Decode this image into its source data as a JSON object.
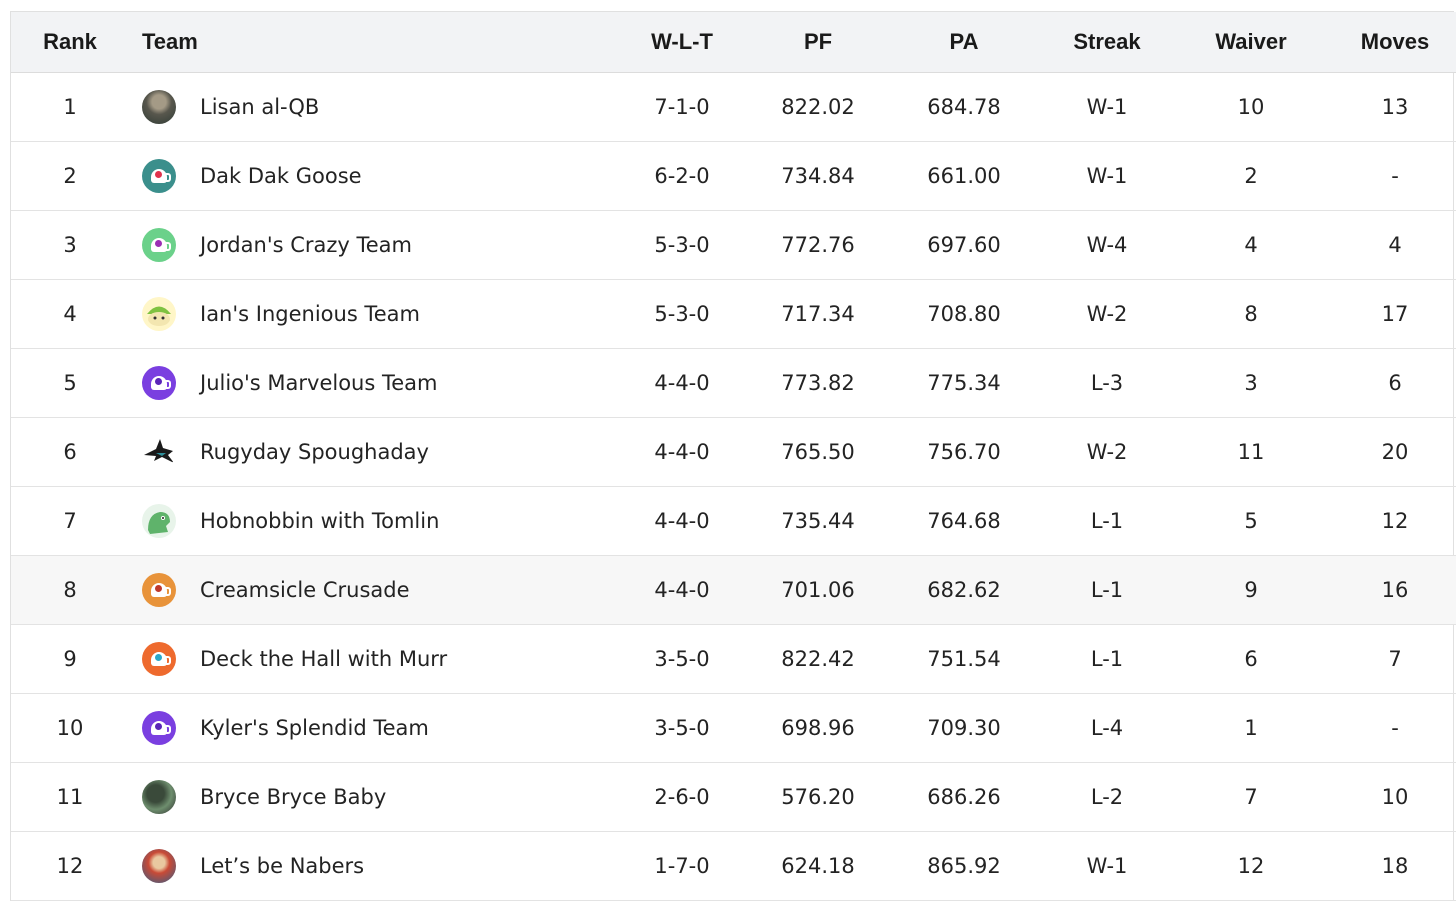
{
  "columns": {
    "rank": "Rank",
    "team": "Team",
    "wlt": "W-L-T",
    "pf": "PF",
    "pa": "PA",
    "streak": "Streak",
    "waiver": "Waiver",
    "moves": "Moves"
  },
  "rows": [
    {
      "rank": "1",
      "team": "Lisan al-QB",
      "wlt": "7-1-0",
      "pf": "822.02",
      "pa": "684.78",
      "streak": "W-1",
      "waiver": "10",
      "moves": "13",
      "logo": "team-photo-icon"
    },
    {
      "rank": "2",
      "team": "Dak Dak Goose",
      "wlt": "6-2-0",
      "pf": "734.84",
      "pa": "661.00",
      "streak": "W-1",
      "waiver": "2",
      "moves": "-",
      "logo": "helmet-icon",
      "logo_bg": "#3b8f8c",
      "logo_fg": "#e0334d"
    },
    {
      "rank": "3",
      "team": "Jordan's Crazy Team",
      "wlt": "5-3-0",
      "pf": "772.76",
      "pa": "697.60",
      "streak": "W-4",
      "waiver": "4",
      "moves": "4",
      "logo": "helmet-icon",
      "logo_bg": "#6bd18a",
      "logo_fg": "#9b2fb4"
    },
    {
      "rank": "4",
      "team": "Ian's Ingenious Team",
      "wlt": "5-3-0",
      "pf": "717.34",
      "pa": "708.80",
      "streak": "W-2",
      "waiver": "8",
      "moves": "17",
      "logo": "cartoon-icon"
    },
    {
      "rank": "5",
      "team": "Julio's Marvelous Team",
      "wlt": "4-4-0",
      "pf": "773.82",
      "pa": "775.34",
      "streak": "L-3",
      "waiver": "3",
      "moves": "6",
      "logo": "helmet-icon",
      "logo_bg": "#7a3fe0",
      "logo_fg": "#5a25b8"
    },
    {
      "rank": "6",
      "team": "Rugyday Spoughaday",
      "wlt": "4-4-0",
      "pf": "765.50",
      "pa": "756.70",
      "streak": "W-2",
      "waiver": "11",
      "moves": "20",
      "logo": "shark-icon"
    },
    {
      "rank": "7",
      "team": "Hobnobbin with Tomlin",
      "wlt": "4-4-0",
      "pf": "735.44",
      "pa": "764.68",
      "streak": "L-1",
      "waiver": "5",
      "moves": "12",
      "logo": "dinosaur-icon"
    },
    {
      "rank": "8",
      "team": "Creamsicle Crusade",
      "wlt": "4-4-0",
      "pf": "701.06",
      "pa": "682.62",
      "streak": "L-1",
      "waiver": "9",
      "moves": "16",
      "logo": "buccaneer-icon",
      "logo_bg": "#e8933a",
      "logo_fg": "#c0392b"
    },
    {
      "rank": "9",
      "team": "Deck the Hall with Murr",
      "wlt": "3-5-0",
      "pf": "822.42",
      "pa": "751.54",
      "streak": "L-1",
      "waiver": "6",
      "moves": "7",
      "logo": "helmet-icon",
      "logo_bg": "#ee6a2e",
      "logo_fg": "#2aa7c9"
    },
    {
      "rank": "10",
      "team": "Kyler's Splendid Team",
      "wlt": "3-5-0",
      "pf": "698.96",
      "pa": "709.30",
      "streak": "L-4",
      "waiver": "1",
      "moves": "-",
      "logo": "helmet-icon",
      "logo_bg": "#7a3fe0",
      "logo_fg": "#5a25b8"
    },
    {
      "rank": "11",
      "team": "Bryce Bryce Baby",
      "wlt": "2-6-0",
      "pf": "576.20",
      "pa": "686.26",
      "streak": "L-2",
      "waiver": "7",
      "moves": "10",
      "logo": "team-photo-icon"
    },
    {
      "rank": "12",
      "team": "Let’s be Nabers",
      "wlt": "1-7-0",
      "pf": "624.18",
      "pa": "865.92",
      "streak": "W-1",
      "waiver": "12",
      "moves": "18",
      "logo": "team-photo-icon"
    }
  ]
}
